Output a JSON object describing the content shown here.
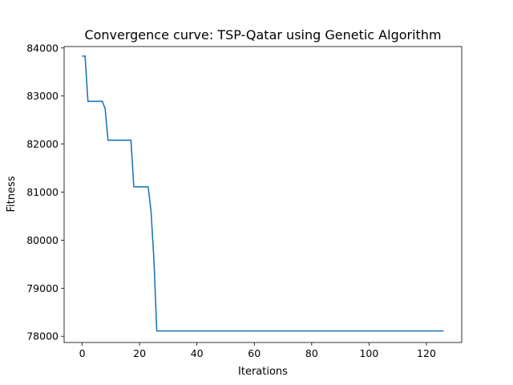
{
  "chart_data": {
    "type": "line",
    "title": "Convergence curve: TSP-Qatar using Genetic Algorithm",
    "xlabel": "Iterations",
    "ylabel": "Fitness",
    "xlim": [
      -6.3,
      132.3
    ],
    "ylim": [
      77870,
      84030
    ],
    "xticks": [
      0,
      20,
      40,
      60,
      80,
      100,
      120
    ],
    "yticks": [
      78000,
      79000,
      80000,
      81000,
      82000,
      83000,
      84000
    ],
    "grid": false,
    "line_color": "#1f77b4",
    "series": [
      {
        "x": [
          0,
          1,
          2,
          3,
          4,
          5,
          6,
          7,
          8,
          9,
          10,
          11,
          12,
          13,
          14,
          15,
          16,
          17,
          18,
          19,
          20,
          21,
          22,
          23,
          24,
          25,
          26,
          27,
          28,
          29,
          30,
          40,
          50,
          60,
          70,
          80,
          90,
          100,
          110,
          120,
          126
        ],
        "y": [
          83830,
          83830,
          82890,
          82890,
          82890,
          82890,
          82890,
          82890,
          82740,
          82080,
          82080,
          82080,
          82080,
          82080,
          82080,
          82080,
          82080,
          82080,
          81110,
          81110,
          81110,
          81110,
          81110,
          81110,
          80600,
          79600,
          78110,
          78110,
          78110,
          78110,
          78110,
          78110,
          78110,
          78110,
          78110,
          78110,
          78110,
          78110,
          78110,
          78110,
          78110
        ]
      }
    ]
  }
}
